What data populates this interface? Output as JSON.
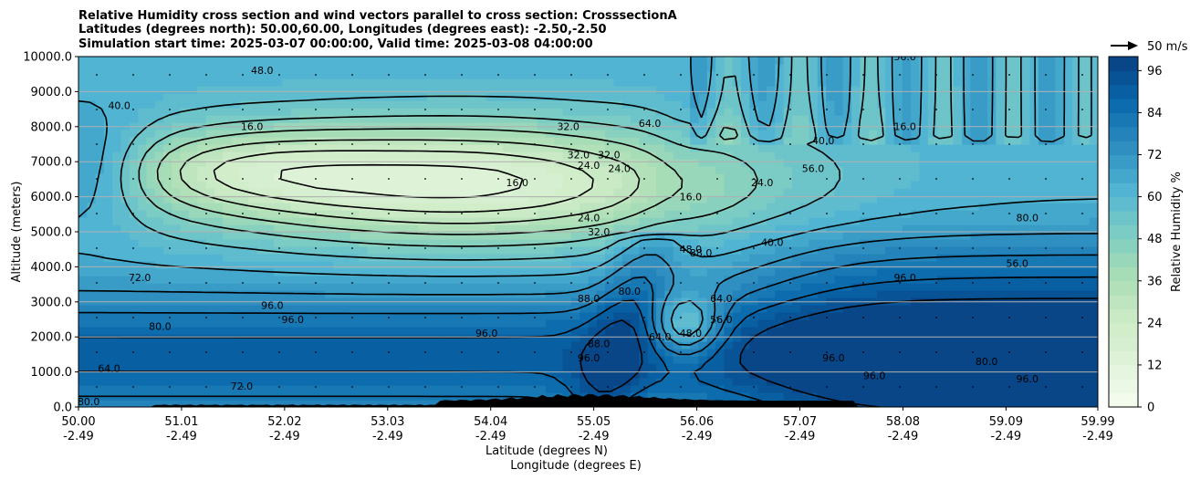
{
  "chart_data": {
    "type": "heatmap",
    "title_lines": [
      "Relative Humidity cross section and wind vectors parallel to cross section: CrosssectionA",
      "Latitudes (degrees north): 50.00,60.00, Longitudes (degrees east): -2.50,-2.50",
      "Simulation start time: 2025-03-07 00:00:00, Valid time: 2025-03-08 04:00:00"
    ],
    "xlabel_lines": [
      "Latitude (degrees N)",
      "Longitude (degrees E)"
    ],
    "ylabel": "Altitude (meters)",
    "x_ticks": [
      {
        "lat": "50.00",
        "lon": "-2.49"
      },
      {
        "lat": "51.01",
        "lon": "-2.49"
      },
      {
        "lat": "52.02",
        "lon": "-2.49"
      },
      {
        "lat": "53.03",
        "lon": "-2.49"
      },
      {
        "lat": "54.04",
        "lon": "-2.49"
      },
      {
        "lat": "55.05",
        "lon": "-2.49"
      },
      {
        "lat": "56.06",
        "lon": "-2.49"
      },
      {
        "lat": "57.07",
        "lon": "-2.49"
      },
      {
        "lat": "58.08",
        "lon": "-2.49"
      },
      {
        "lat": "59.09",
        "lon": "-2.49"
      },
      {
        "lat": "59.99",
        "lon": "-2.49"
      }
    ],
    "xlim": [
      50.0,
      59.99
    ],
    "ylim": [
      0,
      10000
    ],
    "y_ticks": [
      "0.0",
      "1000.0",
      "2000.0",
      "3000.0",
      "4000.0",
      "5000.0",
      "6000.0",
      "7000.0",
      "8000.0",
      "9000.0",
      "10000.0"
    ],
    "y_tick_values": [
      0,
      1000,
      2000,
      3000,
      4000,
      5000,
      6000,
      7000,
      8000,
      9000,
      10000
    ],
    "grid": "horizontal",
    "colorbar": {
      "label": "Relative Humidity %",
      "ticks": [
        "0",
        "12",
        "24",
        "36",
        "48",
        "60",
        "72",
        "84",
        "96"
      ],
      "tick_values": [
        0,
        12,
        24,
        36,
        48,
        60,
        72,
        84,
        96
      ],
      "range": [
        0,
        100
      ],
      "levels_step": 4,
      "colormap": [
        "#f7fcf0",
        "#e0f3db",
        "#ccebc5",
        "#a8ddb5",
        "#7bccc4",
        "#4eb3d3",
        "#2b8cbe",
        "#0868ac",
        "#084081"
      ]
    },
    "wind_key": {
      "label": "50 m/s"
    },
    "contour_labels": [
      {
        "text": "16.0",
        "lat": 51.7,
        "alt": 7900
      },
      {
        "text": "16.0",
        "lat": 54.3,
        "alt": 6300
      },
      {
        "text": "16.0",
        "lat": 56.0,
        "alt": 5900
      },
      {
        "text": "16.0",
        "lat": 58.1,
        "alt": 7900
      },
      {
        "text": "24.0",
        "lat": 55.0,
        "alt": 6800
      },
      {
        "text": "24.0",
        "lat": 55.3,
        "alt": 6700
      },
      {
        "text": "24.0",
        "lat": 56.7,
        "alt": 6300
      },
      {
        "text": "24.0",
        "lat": 55.0,
        "alt": 5300
      },
      {
        "text": "32.0",
        "lat": 54.8,
        "alt": 7900
      },
      {
        "text": "32.0",
        "lat": 54.9,
        "alt": 7100
      },
      {
        "text": "32.0",
        "lat": 55.2,
        "alt": 7100
      },
      {
        "text": "32.0",
        "lat": 55.1,
        "alt": 4900
      },
      {
        "text": "40.0",
        "lat": 50.4,
        "alt": 8500
      },
      {
        "text": "40.0",
        "lat": 56.8,
        "alt": 4600
      },
      {
        "text": "40.0",
        "lat": 57.3,
        "alt": 7500
      },
      {
        "text": "48.0",
        "lat": 56.0,
        "alt": 2000
      },
      {
        "text": "48.0",
        "lat": 56.0,
        "alt": 4400
      },
      {
        "text": "48.0",
        "lat": 51.8,
        "alt": 9500
      },
      {
        "text": "56.0",
        "lat": 56.3,
        "alt": 2400
      },
      {
        "text": "56.0",
        "lat": 58.1,
        "alt": 9900
      },
      {
        "text": "56.0",
        "lat": 59.2,
        "alt": 4000
      },
      {
        "text": "56.0",
        "lat": 57.2,
        "alt": 6700
      },
      {
        "text": "64.0",
        "lat": 50.3,
        "alt": 1000
      },
      {
        "text": "64.0",
        "lat": 55.7,
        "alt": 1900
      },
      {
        "text": "64.0",
        "lat": 56.3,
        "alt": 3000
      },
      {
        "text": "64.0",
        "lat": 55.6,
        "alt": 8000
      },
      {
        "text": "72.0",
        "lat": 50.6,
        "alt": 3600
      },
      {
        "text": "72.0",
        "lat": 51.6,
        "alt": 500
      },
      {
        "text": "80.0",
        "lat": 50.1,
        "alt": 50
      },
      {
        "text": "80.0",
        "lat": 50.8,
        "alt": 2200
      },
      {
        "text": "80.0",
        "lat": 55.4,
        "alt": 3200
      },
      {
        "text": "80.0",
        "lat": 59.3,
        "alt": 5300
      },
      {
        "text": "80.0",
        "lat": 58.9,
        "alt": 1200
      },
      {
        "text": "88.0",
        "lat": 55.0,
        "alt": 3000
      },
      {
        "text": "88.0",
        "lat": 55.1,
        "alt": 1700
      },
      {
        "text": "88.0",
        "lat": 56.1,
        "alt": 4300
      },
      {
        "text": "96.0",
        "lat": 51.9,
        "alt": 2800
      },
      {
        "text": "96.0",
        "lat": 52.1,
        "alt": 2400
      },
      {
        "text": "96.0",
        "lat": 54.0,
        "alt": 2000
      },
      {
        "text": "96.0",
        "lat": 55.0,
        "alt": 1300
      },
      {
        "text": "96.0",
        "lat": 57.4,
        "alt": 1300
      },
      {
        "text": "96.0",
        "lat": 58.1,
        "alt": 3600
      },
      {
        "text": "96.0",
        "lat": 57.8,
        "alt": 800
      },
      {
        "text": "96.0",
        "lat": 59.3,
        "alt": 700
      }
    ]
  }
}
